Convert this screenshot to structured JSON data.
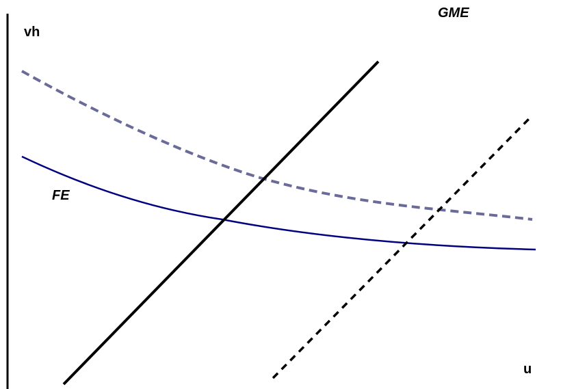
{
  "diagram": {
    "y_axis_label": "vh",
    "x_axis_label": "u",
    "curves": [
      {
        "name": "fe-curve",
        "label": "FE",
        "color": "#000080",
        "style": "solid"
      },
      {
        "name": "fe-shifted-curve",
        "label": "",
        "color": "#6b6b9a",
        "style": "dashed"
      },
      {
        "name": "gme-curve",
        "label": "",
        "color": "#000000",
        "style": "solid"
      },
      {
        "name": "gme-shifted-curve",
        "label": "GME",
        "color": "#000000",
        "style": "dashed"
      }
    ]
  }
}
